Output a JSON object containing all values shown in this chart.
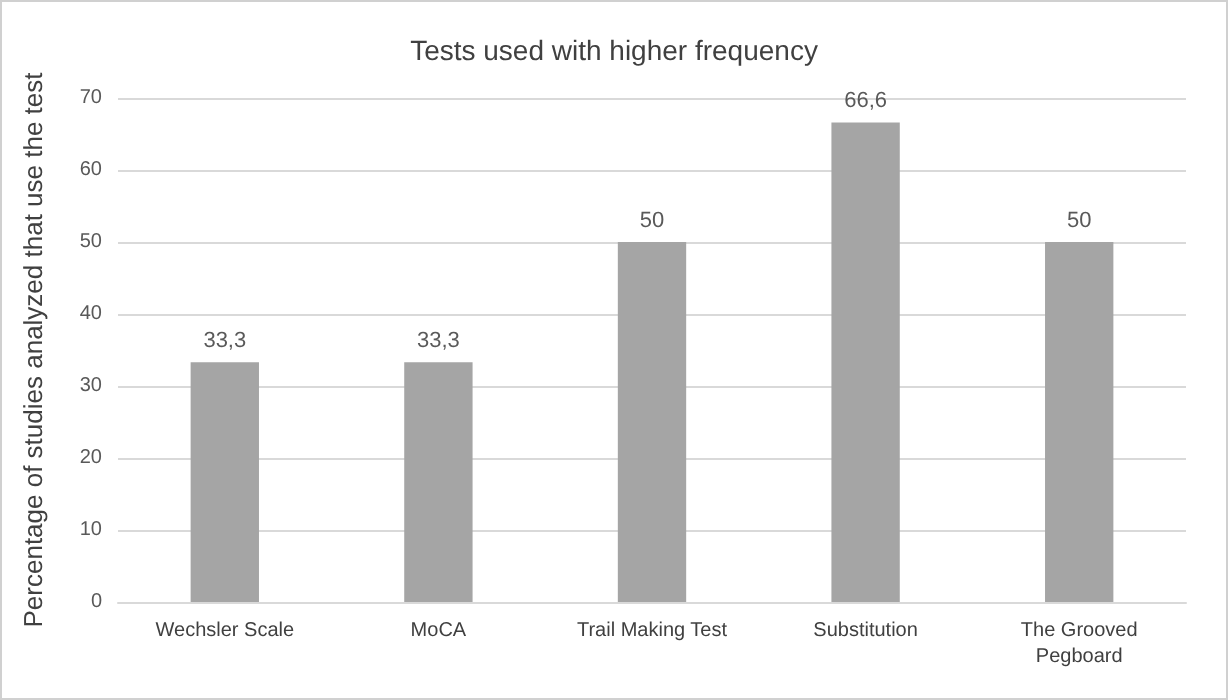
{
  "chart_data": {
    "type": "bar",
    "title": "Tests used with higher frequency",
    "ylabel": "Percentage of studies analyzed that use the test",
    "categories": [
      "Wechsler Scale",
      "MoCA",
      "Trail Making Test",
      "Substitution",
      "The Grooved\nPegboard"
    ],
    "values": [
      33.3,
      33.3,
      50,
      66.6,
      50
    ],
    "value_labels": [
      "33,3",
      "33,3",
      "50",
      "66,6",
      "50"
    ],
    "color": "#a5a5a5",
    "ylim": [
      0,
      70
    ],
    "yticks": [
      0,
      10,
      20,
      30,
      40,
      50,
      60,
      70
    ],
    "grid": "y"
  }
}
